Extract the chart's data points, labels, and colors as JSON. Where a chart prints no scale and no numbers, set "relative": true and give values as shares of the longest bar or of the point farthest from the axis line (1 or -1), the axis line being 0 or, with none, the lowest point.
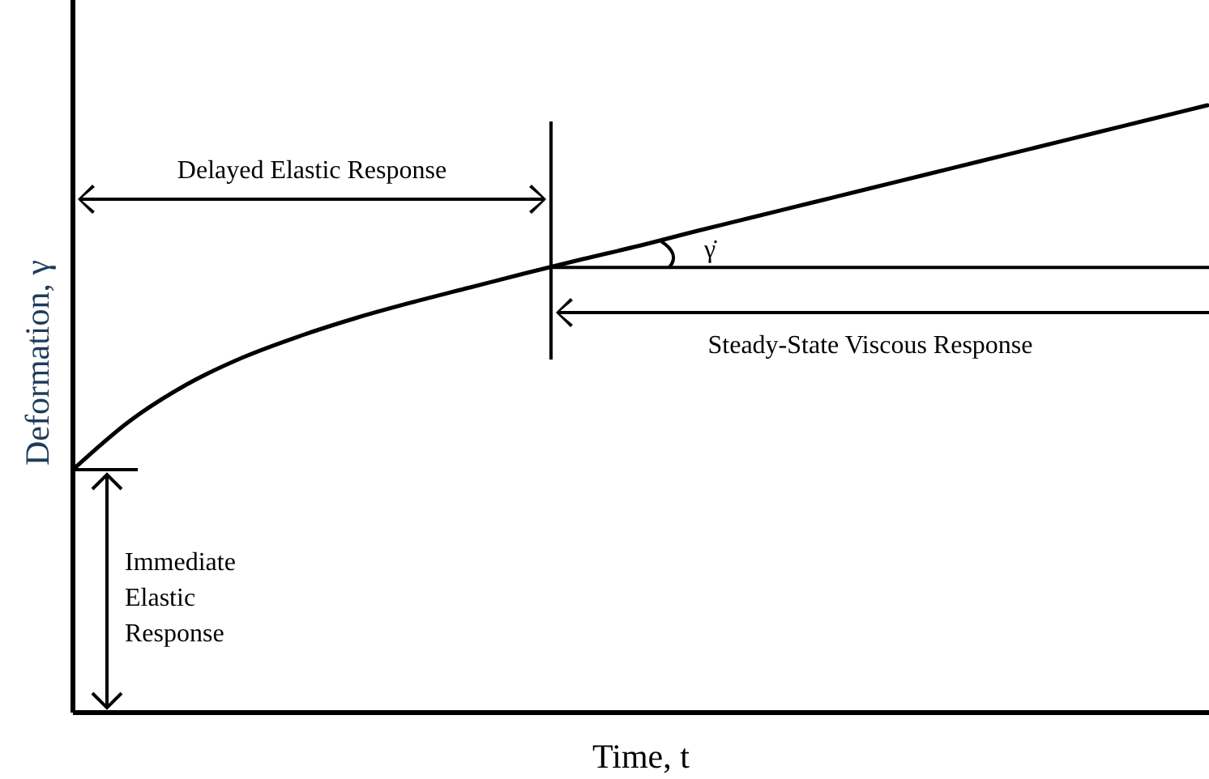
{
  "chart_data": {
    "type": "line",
    "relative": true,
    "xlabel": "Time, t",
    "ylabel": "Deformation, γ",
    "categories": [
      null,
      null,
      null,
      null,
      null,
      null,
      null,
      null,
      null,
      null,
      null,
      null,
      null,
      null,
      null,
      null,
      null,
      null,
      null,
      null,
      null
    ],
    "series": [
      {
        "color": "#000000",
        "values": [
          0.4,
          0.48,
          0.54,
          0.585,
          0.62,
          0.65,
          0.676,
          0.7,
          0.724,
          0.747,
          0.769,
          0.793,
          0.816,
          0.839,
          0.862,
          0.885,
          0.908,
          0.931,
          0.954,
          0.977,
          1
        ]
      }
    ],
    "annotations": [
      "Delayed Elastic Response",
      "γ̇",
      "Steady-State Viscous Response",
      "Immediate Elastic Response"
    ],
    "ref_lines": [
      {
        "axis": "y",
        "value": 0.733,
        "color": "#000000"
      }
    ],
    "marker": "none",
    "line_style": "solid"
  }
}
